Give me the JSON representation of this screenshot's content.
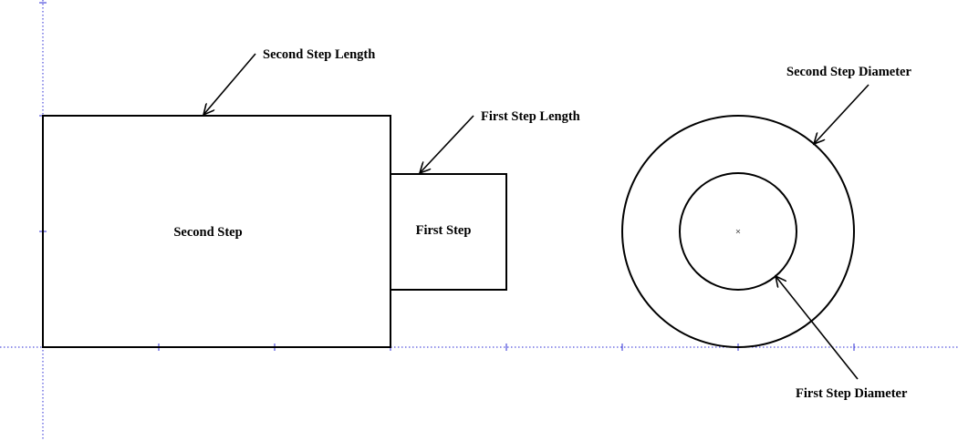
{
  "diagram": {
    "shapes": {
      "second_step": {
        "label": "Second Step"
      },
      "first_step": {
        "label": "First Step"
      }
    },
    "dimension_callouts": {
      "second_step_length": "Second Step Length",
      "first_step_length": "First Step Length",
      "second_step_diameter": "Second Step Diameter",
      "first_step_diameter": "First Step Diameter"
    },
    "colors": {
      "outline": "#000000",
      "grid_axis": "#2b2bd6",
      "background": "#ffffff"
    }
  }
}
